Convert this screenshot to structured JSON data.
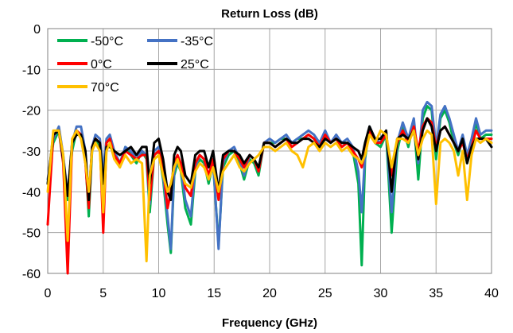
{
  "chart_data": {
    "type": "line",
    "title": "Return Loss (dB)",
    "xlabel": "Frequency  (GHz)",
    "ylabel": "",
    "xlim": [
      0,
      40
    ],
    "ylim": [
      -60,
      0
    ],
    "xticks": [
      "0",
      "5",
      "10",
      "15",
      "20",
      "25",
      "30",
      "35",
      "40"
    ],
    "yticks": [
      "0",
      "-10",
      "-20",
      "-30",
      "-40",
      "-50",
      "-60"
    ],
    "grid": true,
    "legend_placement": "top-left",
    "series": [
      {
        "name": "-50°C",
        "color": "#00b050",
        "x": [
          0,
          0.5,
          1,
          1.4,
          1.8,
          2.2,
          2.6,
          3,
          3.4,
          3.7,
          4,
          4.3,
          4.7,
          5,
          5.3,
          5.6,
          6,
          6.5,
          7,
          7.5,
          8,
          8.5,
          8.9,
          9.2,
          9.6,
          10,
          10.4,
          10.8,
          11.1,
          11.4,
          11.7,
          12,
          12.4,
          12.9,
          13.3,
          13.7,
          14.1,
          14.5,
          14.9,
          15.4,
          15.8,
          16.3,
          16.8,
          17.3,
          17.7,
          18.2,
          18.6,
          19,
          19.5,
          20,
          20.5,
          21,
          21.5,
          22,
          22.5,
          23,
          23.5,
          24,
          24.5,
          25,
          25.5,
          26,
          26.5,
          27,
          27.5,
          28,
          28.3,
          28.6,
          29,
          29.5,
          30,
          30.5,
          31,
          31.5,
          32,
          32.5,
          33,
          33.4,
          33.8,
          34.2,
          34.6,
          35,
          35.4,
          35.8,
          36.2,
          36.6,
          37,
          37.4,
          37.8,
          38.2,
          38.6,
          39,
          39.5,
          40
        ],
        "y": [
          -38,
          -28,
          -25,
          -32,
          -42,
          -30,
          -25,
          -26,
          -32,
          -46,
          -30,
          -27,
          -29,
          -38,
          -28,
          -27,
          -31,
          -34,
          -29,
          -31,
          -33,
          -30,
          -32,
          -45,
          -31,
          -30,
          -37,
          -48,
          -55,
          -36,
          -33,
          -35,
          -44,
          -48,
          -35,
          -32,
          -33,
          -38,
          -33,
          -53,
          -34,
          -31,
          -30,
          -33,
          -37,
          -32,
          -33,
          -36,
          -28,
          -28,
          -28,
          -27,
          -27,
          -28,
          -27,
          -27,
          -26,
          -27,
          -29,
          -26,
          -28,
          -27,
          -29,
          -28,
          -30,
          -38,
          -58,
          -32,
          -24,
          -28,
          -29,
          -26,
          -50,
          -30,
          -24,
          -29,
          -23,
          -37,
          -22,
          -19,
          -20,
          -32,
          -22,
          -20,
          -23,
          -28,
          -31,
          -27,
          -33,
          -29,
          -23,
          -27,
          -26,
          -26
        ]
      },
      {
        "name": "-35°C",
        "color": "#4472c4",
        "x": [
          0,
          0.5,
          1,
          1.4,
          1.8,
          2.2,
          2.6,
          3,
          3.4,
          3.7,
          4,
          4.3,
          4.7,
          5,
          5.3,
          5.6,
          6,
          6.5,
          7,
          7.5,
          8,
          8.5,
          8.9,
          9.2,
          9.6,
          10,
          10.4,
          10.8,
          11.1,
          11.4,
          11.7,
          12,
          12.4,
          12.9,
          13.3,
          13.7,
          14.1,
          14.5,
          14.9,
          15.4,
          15.8,
          16.3,
          16.8,
          17.3,
          17.7,
          18.2,
          18.6,
          19,
          19.5,
          20,
          20.5,
          21,
          21.5,
          22,
          22.5,
          23,
          23.5,
          24,
          24.5,
          25,
          25.5,
          26,
          26.5,
          27,
          27.5,
          28,
          28.3,
          28.6,
          29,
          29.5,
          30,
          30.5,
          31,
          31.5,
          32,
          32.5,
          33,
          33.4,
          33.8,
          34.2,
          34.6,
          35,
          35.4,
          35.8,
          36.2,
          36.6,
          37,
          37.4,
          37.8,
          38.2,
          38.6,
          39,
          39.5,
          40
        ],
        "y": [
          -37,
          -27,
          -24,
          -31,
          -41,
          -28,
          -24,
          -24,
          -30,
          -43,
          -29,
          -26,
          -27,
          -35,
          -27,
          -26,
          -30,
          -33,
          -29,
          -30,
          -32,
          -30,
          -31,
          -43,
          -30,
          -29,
          -36,
          -46,
          -54,
          -35,
          -32,
          -34,
          -42,
          -46,
          -34,
          -31,
          -32,
          -37,
          -32,
          -54,
          -33,
          -30,
          -29,
          -32,
          -36,
          -31,
          -32,
          -35,
          -28,
          -27,
          -28,
          -27,
          -26,
          -28,
          -27,
          -26,
          -25,
          -26,
          -28,
          -25,
          -28,
          -26,
          -28,
          -27,
          -29,
          -35,
          -45,
          -31,
          -24,
          -27,
          -28,
          -25,
          -45,
          -28,
          -23,
          -27,
          -22,
          -33,
          -20,
          -18,
          -19,
          -29,
          -21,
          -19,
          -22,
          -26,
          -30,
          -26,
          -31,
          -27,
          -22,
          -26,
          -25,
          -25
        ]
      },
      {
        "name": "0°C",
        "color": "#ff0000",
        "x": [
          0,
          0.5,
          1,
          1.4,
          1.8,
          2.2,
          2.6,
          3,
          3.4,
          3.7,
          4,
          4.3,
          4.7,
          5,
          5.3,
          5.6,
          6,
          6.5,
          7,
          7.5,
          8,
          8.5,
          8.9,
          9.2,
          9.6,
          10,
          10.4,
          10.8,
          11.1,
          11.4,
          11.7,
          12,
          12.4,
          12.9,
          13.3,
          13.7,
          14.1,
          14.5,
          14.9,
          15.4,
          15.8,
          16.3,
          16.8,
          17.3,
          17.7,
          18.2,
          18.6,
          19,
          19.5,
          20,
          20.5,
          21,
          21.5,
          22,
          22.5,
          23,
          23.5,
          24,
          24.5,
          25,
          25.5,
          26,
          26.5,
          27,
          27.5,
          28,
          28.3,
          28.6,
          29,
          29.5,
          30,
          30.5,
          31,
          31.5,
          32,
          32.5,
          33,
          33.4,
          33.8,
          34.2,
          34.6,
          35,
          35.4,
          35.8,
          36.2,
          36.6,
          37,
          37.4,
          37.8,
          38.2,
          38.6,
          39,
          39.5,
          40
        ],
        "y": [
          -48,
          -26,
          -25,
          -33,
          -60,
          -28,
          -25,
          -26,
          -33,
          -44,
          -29,
          -27,
          -28,
          -50,
          -28,
          -27,
          -31,
          -33,
          -30,
          -31,
          -32,
          -31,
          -31,
          -42,
          -31,
          -30,
          -34,
          -44,
          -40,
          -33,
          -31,
          -33,
          -39,
          -41,
          -33,
          -31,
          -32,
          -36,
          -32,
          -42,
          -32,
          -30,
          -30,
          -32,
          -34,
          -31,
          -32,
          -35,
          -28,
          -28,
          -29,
          -28,
          -27,
          -29,
          -28,
          -27,
          -26,
          -27,
          -29,
          -26,
          -28,
          -27,
          -29,
          -28,
          -30,
          -32,
          -34,
          -30,
          -25,
          -28,
          -28,
          -26,
          -36,
          -28,
          -25,
          -28,
          -24,
          -30,
          -24,
          -22,
          -23,
          -29,
          -25,
          -24,
          -26,
          -28,
          -30,
          -28,
          -32,
          -29,
          -25,
          -27,
          -27,
          -27
        ]
      },
      {
        "name": "25°C",
        "color": "#000000",
        "x": [
          0,
          0.5,
          1,
          1.4,
          1.8,
          2.2,
          2.6,
          3,
          3.4,
          3.7,
          4,
          4.3,
          4.7,
          5,
          5.3,
          5.6,
          6,
          6.5,
          7,
          7.5,
          8,
          8.5,
          8.9,
          9.2,
          9.6,
          10,
          10.4,
          10.8,
          11.1,
          11.4,
          11.7,
          12,
          12.4,
          12.9,
          13.3,
          13.7,
          14.1,
          14.5,
          14.9,
          15.4,
          15.8,
          16.3,
          16.8,
          17.3,
          17.7,
          18.2,
          18.6,
          19,
          19.5,
          20,
          20.5,
          21,
          21.5,
          22,
          22.5,
          23,
          23.5,
          24,
          24.5,
          25,
          25.5,
          26,
          26.5,
          27,
          27.5,
          28,
          28.3,
          28.6,
          29,
          29.5,
          30,
          30.5,
          31,
          31.5,
          32,
          32.5,
          33,
          33.4,
          33.8,
          34.2,
          34.6,
          35,
          35.4,
          35.8,
          36.2,
          36.6,
          37,
          37.4,
          37.8,
          38.2,
          38.6,
          39,
          39.5,
          40
        ],
        "y": [
          -38,
          -26,
          -25,
          -32,
          -41,
          -28,
          -26,
          -26,
          -30,
          -42,
          -29,
          -27,
          -28,
          -38,
          -29,
          -29,
          -30,
          -31,
          -30,
          -29,
          -31,
          -29,
          -29,
          -38,
          -28,
          -27,
          -32,
          -40,
          -42,
          -31,
          -29,
          -30,
          -36,
          -38,
          -31,
          -30,
          -30,
          -34,
          -30,
          -40,
          -31,
          -30,
          -30,
          -31,
          -33,
          -31,
          -32,
          -34,
          -28,
          -28,
          -29,
          -28,
          -27,
          -28,
          -28,
          -27,
          -27,
          -28,
          -29,
          -27,
          -28,
          -27,
          -28,
          -28,
          -29,
          -30,
          -32,
          -28,
          -24,
          -27,
          -27,
          -25,
          -40,
          -27,
          -26,
          -27,
          -25,
          -32,
          -25,
          -22,
          -24,
          -30,
          -25,
          -24,
          -26,
          -28,
          -30,
          -27,
          -33,
          -29,
          -27,
          -27,
          -27,
          -29
        ]
      },
      {
        "name": "70°C",
        "color": "#ffc000",
        "x": [
          0,
          0.5,
          1,
          1.4,
          1.8,
          2.2,
          2.6,
          3,
          3.4,
          3.7,
          4,
          4.3,
          4.7,
          5,
          5.3,
          5.6,
          6,
          6.5,
          7,
          7.5,
          8,
          8.5,
          8.9,
          9.2,
          9.6,
          10,
          10.4,
          10.8,
          11.1,
          11.4,
          11.7,
          12,
          12.4,
          12.9,
          13.3,
          13.7,
          14.1,
          14.5,
          14.9,
          15.4,
          15.8,
          16.3,
          16.8,
          17.3,
          17.7,
          18.2,
          18.6,
          19,
          19.5,
          20,
          20.5,
          21,
          21.5,
          22,
          22.5,
          23,
          23.5,
          24,
          24.5,
          25,
          25.5,
          26,
          26.5,
          27,
          27.5,
          28,
          28.3,
          28.6,
          29,
          29.5,
          30,
          30.5,
          31,
          31.5,
          32,
          32.5,
          33,
          33.4,
          33.8,
          34.2,
          34.6,
          35,
          35.4,
          35.8,
          36.2,
          36.6,
          37,
          37.4,
          37.8,
          38.2,
          38.6,
          39,
          39.5,
          40
        ],
        "y": [
          -40,
          -25,
          -25,
          -31,
          -52,
          -27,
          -25,
          -27,
          -33,
          -40,
          -30,
          -28,
          -30,
          -45,
          -30,
          -28,
          -32,
          -34,
          -31,
          -33,
          -32,
          -33,
          -57,
          -36,
          -32,
          -31,
          -36,
          -40,
          -38,
          -34,
          -32,
          -35,
          -38,
          -39,
          -35,
          -33,
          -34,
          -37,
          -34,
          -40,
          -35,
          -33,
          -31,
          -34,
          -35,
          -33,
          -32,
          -31,
          -29,
          -29,
          -30,
          -29,
          -28,
          -30,
          -31,
          -34,
          -29,
          -28,
          -30,
          -28,
          -29,
          -28,
          -30,
          -29,
          -31,
          -32,
          -33,
          -31,
          -26,
          -28,
          -25,
          -26,
          -34,
          -27,
          -27,
          -28,
          -25,
          -31,
          -27,
          -25,
          -26,
          -43,
          -28,
          -27,
          -28,
          -30,
          -36,
          -30,
          -42,
          -31,
          -27,
          -28,
          -27,
          -28
        ]
      }
    ]
  }
}
